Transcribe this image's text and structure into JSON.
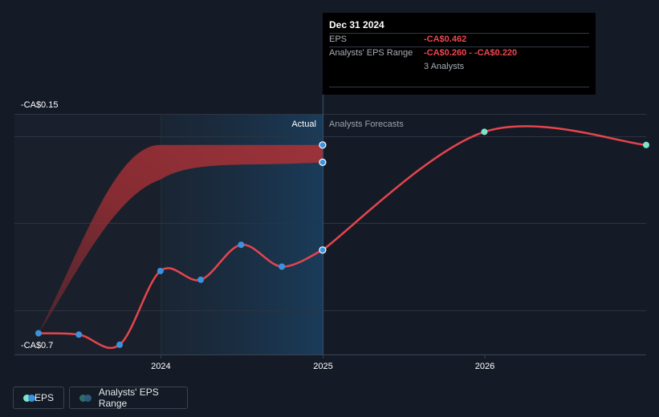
{
  "chart_data": {
    "type": "line",
    "y_axis": {
      "top_label": "-CA$0.15",
      "bottom_label": "-CA$0.7",
      "range": [
        -0.7,
        -0.15
      ],
      "gridlines": [
        -0.15,
        -0.2,
        -0.4,
        -0.6
      ]
    },
    "x_axis": {
      "tick_labels": [
        "2024",
        "2025",
        "2026"
      ],
      "range": [
        "2023-03-31",
        "2026-12-31"
      ]
    },
    "dividers": {
      "actual_label": "Actual",
      "forecast_label": "Analysts Forecasts",
      "actual_forecast_boundary": "2024-12-31",
      "highlight_start": "2024-01-01"
    },
    "series": [
      {
        "name": "EPS",
        "kind": "actual",
        "color": "#e6454d",
        "points": [
          {
            "x": "2023-03-31",
            "y": -0.652
          },
          {
            "x": "2023-06-30",
            "y": -0.655
          },
          {
            "x": "2023-09-30",
            "y": -0.678
          },
          {
            "x": "2023-12-31",
            "y": -0.51
          },
          {
            "x": "2024-03-31",
            "y": -0.53
          },
          {
            "x": "2024-06-30",
            "y": -0.45
          },
          {
            "x": "2024-09-30",
            "y": -0.5
          },
          {
            "x": "2024-12-31",
            "y": -0.462
          }
        ]
      },
      {
        "name": "EPS",
        "kind": "forecast",
        "color": "#e6454d",
        "points": [
          {
            "x": "2024-12-31",
            "y": -0.462
          },
          {
            "x": "2025-12-31",
            "y": -0.19
          },
          {
            "x": "2026-12-31",
            "y": -0.22
          }
        ]
      },
      {
        "name": "Analysts' EPS Range",
        "kind": "range",
        "color": "#9b2f33",
        "points": [
          {
            "x": "2023-03-31",
            "low": -0.652,
            "high": -0.652
          },
          {
            "x": "2023-12-31",
            "low": -0.26,
            "high": -0.22
          },
          {
            "x": "2024-12-31",
            "low": -0.26,
            "high": -0.22
          }
        ]
      }
    ],
    "legend": [
      "EPS",
      "Analysts' EPS Range"
    ],
    "legend_position": "bottom-left",
    "colors": {
      "eps_line": "#e6454d",
      "actual_marker": "#3b93e0",
      "forecast_marker": "#7de3c9",
      "range_fill": "#9b2f33",
      "highlight": "#1b3a55"
    }
  },
  "tooltip": {
    "date": "Dec 31 2024",
    "rows": [
      {
        "label": "EPS",
        "value": "-CA$0.462"
      },
      {
        "label": "Analysts' EPS Range",
        "value": "-CA$0.260 - -CA$0.220"
      }
    ],
    "analysts": "3 Analysts"
  },
  "legend": {
    "eps_label": "EPS",
    "range_label": "Analysts' EPS Range"
  }
}
